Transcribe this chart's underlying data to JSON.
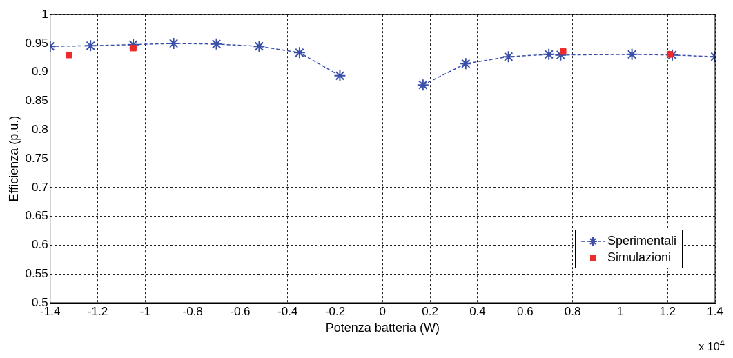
{
  "chart_data": {
    "type": "line",
    "xlabel": "Potenza batteria (W)",
    "ylabel": "Efficienza (p.u.)",
    "annotations": [
      "x 10$^{4}$"
    ],
    "xlim": [
      -1.4,
      1.4
    ],
    "xticks": [
      -1.4,
      -1.2,
      -1,
      -0.8,
      -0.6,
      -0.4,
      -0.2,
      0,
      0.2,
      0.4,
      0.6,
      0.8,
      1,
      1.2,
      1.4
    ],
    "ylim": [
      0.5,
      1
    ],
    "yticks": [
      0.5,
      0.55,
      0.6,
      0.65,
      0.7,
      0.75,
      0.8,
      0.85,
      0.9,
      0.95,
      1
    ],
    "grid": true,
    "legend": "bottom right",
    "line_style": "dashed",
    "series": [
      {
        "name": "Sperimentali",
        "type": "line",
        "marker": "cross",
        "color": "#3a50a8",
        "x": [
          -1.4,
          -1.23,
          -1.05,
          -0.88,
          -0.7,
          -0.52,
          -0.35,
          -0.18,
          0,
          0.17,
          0.35,
          0.53,
          0.7,
          0.75,
          1.05,
          1.22,
          1.4
        ],
        "values": [
          0.945,
          0.946,
          0.948,
          0.95,
          0.949,
          0.945,
          0.934,
          0.894,
          null,
          0.878,
          0.915,
          0.927,
          0.931,
          0.93,
          0.931,
          0.93,
          0.927
        ]
      },
      {
        "name": "Simulazioni",
        "type": "scatter",
        "marker": "square",
        "color": "#ee2a2a",
        "x": [
          -1.32,
          -1.05,
          0.76,
          1.21
        ],
        "values": [
          0.93,
          0.942,
          0.936,
          0.931
        ]
      }
    ]
  }
}
